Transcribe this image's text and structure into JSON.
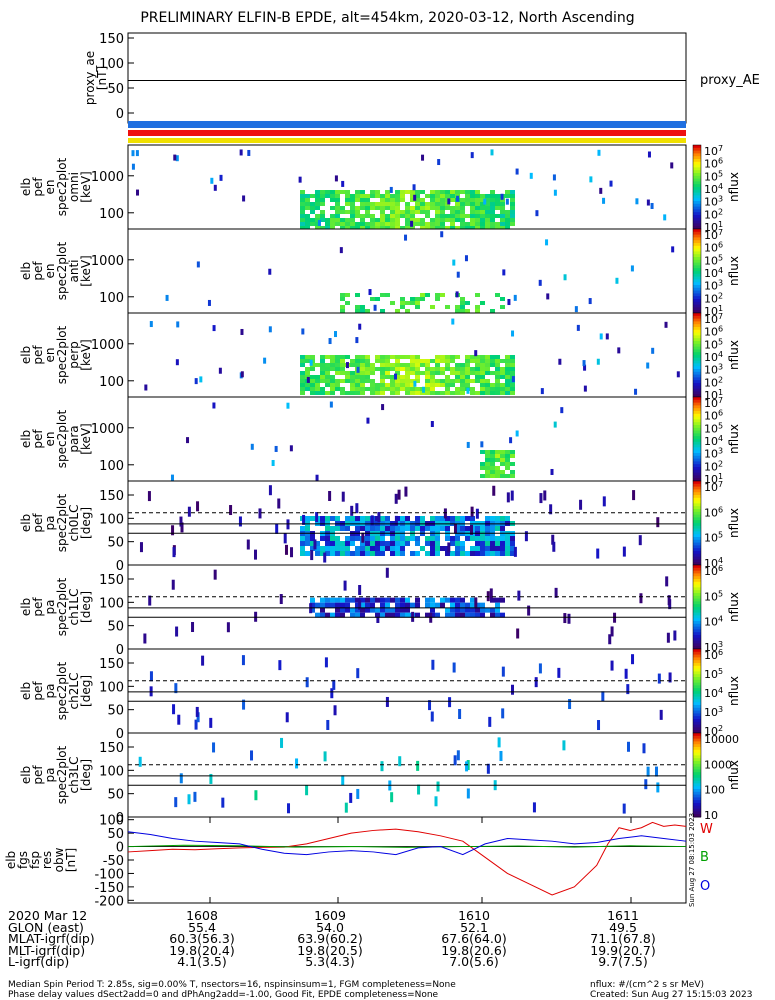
{
  "title": "PRELIMINARY ELFIN-B EPDE, alt=454km, 2020-03-12, North Ascending",
  "colors": {
    "W": "#e00000",
    "B": "#00a000",
    "O": "#0000e0",
    "blue_bar": "#1f6fe0",
    "red_bar": "#ee1010",
    "yellow_bar": "#f0e000"
  },
  "chart_data": [
    {
      "type": "line",
      "panel": "proxy_ae",
      "ylabel": [
        "proxy_ae",
        "[nT]"
      ],
      "ylim": [
        -20,
        160
      ],
      "yticks": [
        "150",
        "100",
        "50",
        "0"
      ],
      "ytick_values": [
        150,
        100,
        50,
        0
      ],
      "series": [
        {
          "name": "proxy_AE",
          "x": [
            0,
            1
          ],
          "values": [
            65,
            65
          ]
        }
      ]
    },
    {
      "type": "heatmap",
      "panel": "pef_en_spec2plot_omni",
      "ylabel": [
        "elb",
        "pef",
        "en",
        "spec2plot",
        "omni",
        "[keV]"
      ],
      "y_scale": "log",
      "yticks": [
        "1000",
        "100"
      ],
      "ytick_values": [
        1000,
        100
      ],
      "colorbar_label": "nflux",
      "colorbar_ticks": [
        "10^7",
        "10^6",
        "10^5",
        "10^4",
        "10^3",
        "10^2",
        "10^1"
      ]
    },
    {
      "type": "heatmap",
      "panel": "pef_en_spec2plot_anti",
      "ylabel": [
        "elb",
        "pef",
        "en",
        "spec2plot",
        "anti",
        "[keV]"
      ],
      "y_scale": "log",
      "yticks": [
        "1000",
        "100"
      ],
      "ytick_values": [
        1000,
        100
      ],
      "colorbar_label": "nflux",
      "colorbar_ticks": [
        "10^7",
        "10^6",
        "10^5",
        "10^4",
        "10^3",
        "10^2",
        "10^1"
      ]
    },
    {
      "type": "heatmap",
      "panel": "pef_en_spec2plot_perp",
      "ylabel": [
        "elb",
        "pef",
        "en",
        "spec2plot",
        "perp",
        "[keV]"
      ],
      "y_scale": "log",
      "yticks": [
        "1000",
        "100"
      ],
      "ytick_values": [
        1000,
        100
      ],
      "colorbar_label": "nflux",
      "colorbar_ticks": [
        "10^7",
        "10^6",
        "10^5",
        "10^4",
        "10^3",
        "10^2",
        "10^1"
      ]
    },
    {
      "type": "heatmap",
      "panel": "pef_en_spec2plot_para",
      "ylabel": [
        "elb",
        "pef",
        "en",
        "spec2plot",
        "para",
        "[keV]"
      ],
      "y_scale": "log",
      "yticks": [
        "1000",
        "100"
      ],
      "ytick_values": [
        1000,
        100
      ],
      "colorbar_label": "nflux",
      "colorbar_ticks": [
        "10^7",
        "10^6",
        "10^5",
        "10^4",
        "10^3",
        "10^2",
        "10^1"
      ]
    },
    {
      "type": "heatmap",
      "panel": "pef_pa_spec2plot_ch0LC",
      "ylabel": [
        "elb",
        "pef",
        "pa",
        "spec2plot",
        "ch0LC",
        "[deg]"
      ],
      "ylim": [
        0,
        180
      ],
      "yticks": [
        "150",
        "100",
        "50",
        "0"
      ],
      "ytick_values": [
        150,
        100,
        50,
        0
      ],
      "colorbar_label": "nflux",
      "colorbar_ticks": [
        "10^7",
        "10^6",
        "10^5",
        "10^4"
      ]
    },
    {
      "type": "heatmap",
      "panel": "pef_pa_spec2plot_ch1LC",
      "ylabel": [
        "elb",
        "pef",
        "pa",
        "spec2plot",
        "ch1LC",
        "[deg]"
      ],
      "ylim": [
        0,
        180
      ],
      "yticks": [
        "150",
        "100",
        "50",
        "0"
      ],
      "ytick_values": [
        150,
        100,
        50,
        0
      ],
      "colorbar_label": "nflux",
      "colorbar_ticks": [
        "10^6",
        "10^5",
        "10^4",
        "10^3"
      ]
    },
    {
      "type": "heatmap",
      "panel": "pef_pa_spec2plot_ch2LC",
      "ylabel": [
        "elb",
        "pef",
        "pa",
        "spec2plot",
        "ch2LC",
        "[deg]"
      ],
      "ylim": [
        0,
        180
      ],
      "yticks": [
        "150",
        "100",
        "50",
        "0"
      ],
      "ytick_values": [
        150,
        100,
        50,
        0
      ],
      "colorbar_label": "nflux",
      "colorbar_ticks": [
        "10^6",
        "10^5",
        "10^4",
        "10^3",
        "10^2"
      ]
    },
    {
      "type": "heatmap",
      "panel": "pef_pa_spec2plot_ch3LC",
      "ylabel": [
        "elb",
        "pef",
        "pa",
        "spec2plot",
        "ch3LC",
        "[deg]"
      ],
      "ylim": [
        0,
        180
      ],
      "yticks": [
        "150",
        "100",
        "50",
        "0"
      ],
      "ytick_values": [
        150,
        100,
        50,
        0
      ],
      "colorbar_label": "nflux",
      "colorbar_ticks": [
        "10000",
        "1000",
        "100",
        "10"
      ]
    },
    {
      "type": "line",
      "panel": "fgs_fsp_res_obw",
      "ylabel": [
        "elb",
        "fgs",
        "fsp",
        "res",
        "obw",
        "[nT]"
      ],
      "ylim": [
        -210,
        110
      ],
      "yticks": [
        "100",
        "50",
        "0",
        "-50",
        "-100",
        "-150",
        "-200"
      ],
      "ytick_values": [
        100,
        50,
        0,
        -50,
        -100,
        -150,
        -200
      ],
      "legend": [
        "W",
        "B",
        "O"
      ],
      "series": [
        {
          "name": "W",
          "x": [
            0,
            0.04,
            0.08,
            0.12,
            0.16,
            0.2,
            0.24,
            0.28,
            0.32,
            0.36,
            0.4,
            0.44,
            0.48,
            0.52,
            0.56,
            0.6,
            0.64,
            0.68,
            0.72,
            0.76,
            0.8,
            0.84,
            0.86,
            0.88,
            0.9,
            0.92,
            0.94,
            0.96,
            0.98,
            1.0
          ],
          "values": [
            -20,
            -15,
            -10,
            -12,
            -8,
            -5,
            -3,
            -2,
            10,
            30,
            50,
            60,
            65,
            55,
            40,
            20,
            -40,
            -100,
            -140,
            -180,
            -150,
            -70,
            10,
            70,
            60,
            70,
            90,
            75,
            80,
            75
          ]
        },
        {
          "name": "B",
          "x": [
            0,
            0.1,
            0.2,
            0.3,
            0.4,
            0.5,
            0.6,
            0.7,
            0.8,
            0.9,
            1.0
          ],
          "values": [
            0,
            5,
            3,
            -2,
            0,
            -3,
            0,
            2,
            -2,
            3,
            0
          ]
        },
        {
          "name": "O",
          "x": [
            0,
            0.04,
            0.08,
            0.12,
            0.16,
            0.2,
            0.24,
            0.28,
            0.32,
            0.36,
            0.4,
            0.44,
            0.48,
            0.52,
            0.56,
            0.6,
            0.64,
            0.68,
            0.72,
            0.76,
            0.8,
            0.84,
            0.88,
            0.92,
            0.96,
            1.0
          ],
          "values": [
            55,
            45,
            30,
            20,
            15,
            10,
            -10,
            -25,
            -30,
            -20,
            -15,
            -20,
            -30,
            -5,
            0,
            -30,
            10,
            30,
            25,
            20,
            10,
            15,
            30,
            40,
            30,
            20
          ]
        }
      ]
    }
  ],
  "right_labels": {
    "proxy": "proxy_AE",
    "W": "W",
    "B": "B",
    "O": "O"
  },
  "timestamp_vertical": "Sun Aug 27 08:15:03 2023",
  "footer": {
    "rows": [
      {
        "label": "2020 Mar 12",
        "cells": [
          "1608",
          "1609",
          "1610",
          "1611"
        ]
      },
      {
        "label": "GLON (east)",
        "cells": [
          "55.4",
          "54.0",
          "52.1",
          "49.5"
        ]
      },
      {
        "label": "MLAT-igrf(dip)",
        "cells": [
          "60.3(56.3)",
          "63.9(60.2)",
          "67.6(64.0)",
          "71.1(67.8)"
        ]
      },
      {
        "label": "MLT-igrf(dip)",
        "cells": [
          "19.8(20.4)",
          "19.8(20.5)",
          "19.8(20.6)",
          "19.9(20.7)"
        ]
      },
      {
        "label": "L-igrf(dip)",
        "cells": [
          "4.1(3.5)",
          "5.3(4.3)",
          "7.0(5.6)",
          "9.7(7.5)"
        ]
      }
    ],
    "meta_left_1": "Median Spin Period T: 2.85s, sig=0.00% T, nsectors=16, nspinsinsum=1, FGM completeness=None",
    "meta_left_2": "Phase delay values dSect2add=0 and dPhAng2add=-1.00, Good Fit, EPDE completeness=None",
    "meta_right_1": "nflux: #/(cm^2 s sr MeV)",
    "meta_right_2": "Created: Sun Aug 27 15:15:03 2023"
  }
}
